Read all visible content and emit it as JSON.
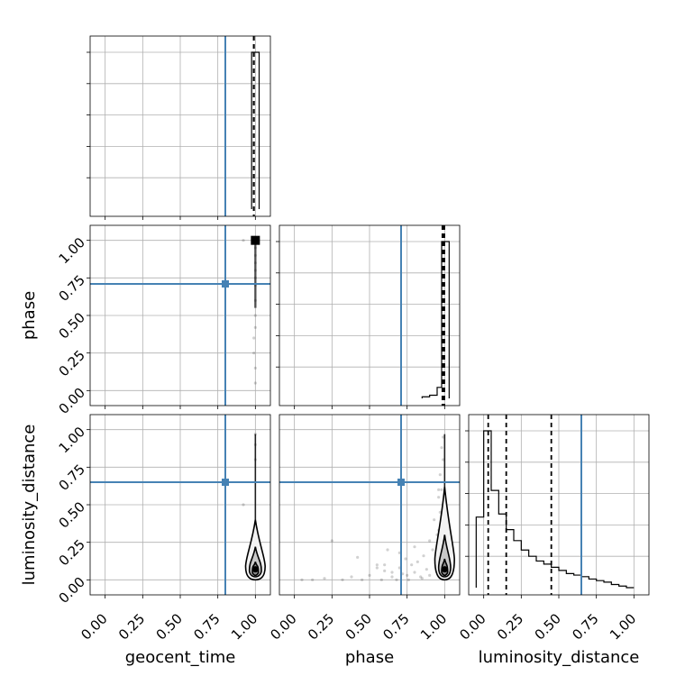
{
  "chart_data": {
    "type": "corner",
    "parameters": [
      "geocent_time",
      "phase",
      "luminosity_distance"
    ],
    "ticks": [
      "0.00",
      "0.25",
      "0.50",
      "0.75",
      "1.00"
    ],
    "range": [
      -0.1,
      1.1
    ],
    "grid": true,
    "truths": {
      "color": "#4682b4",
      "geocent_time": 0.8,
      "phase": 0.71,
      "luminosity_distance": 0.65
    },
    "quantiles_color": "#000000",
    "marginals": {
      "geocent_time": {
        "bin_edges": [
          0.975,
          1.0,
          1.025
        ],
        "counts": [
          1.0,
          1.0
        ],
        "quantiles": [
          0.99,
          0.99,
          0.99
        ]
      },
      "phase": {
        "bin_edges": [
          0.85,
          0.9,
          0.95,
          0.98,
          1.0,
          1.03
        ],
        "counts": [
          0.01,
          0.02,
          0.07,
          1.0,
          1.0
        ],
        "quantiles": [
          0.985,
          0.992,
          0.998
        ]
      },
      "luminosity_distance": {
        "bin_edges": [
          -0.05,
          0.0,
          0.05,
          0.1,
          0.15,
          0.2,
          0.25,
          0.3,
          0.35,
          0.4,
          0.45,
          0.5,
          0.55,
          0.6,
          0.65,
          0.7,
          0.75,
          0.8,
          0.85,
          0.9,
          0.95,
          1.0
        ],
        "counts": [
          0.45,
          1.0,
          0.62,
          0.47,
          0.37,
          0.3,
          0.24,
          0.2,
          0.17,
          0.15,
          0.13,
          0.11,
          0.09,
          0.08,
          0.07,
          0.055,
          0.045,
          0.035,
          0.02,
          0.01,
          0.0
        ],
        "quantiles": [
          0.03,
          0.15,
          0.45
        ]
      }
    },
    "joint": {
      "phase_vs_geocent_time": {
        "scatter_x": [
          1.0,
          1.0,
          1.0,
          1.0,
          1.0,
          1.0,
          1.0,
          1.0,
          1.0,
          1.0,
          0.99,
          0.99,
          0.92,
          1.0,
          1.0
        ],
        "scatter_y": [
          0.98,
          0.95,
          0.9,
          0.85,
          0.8,
          0.75,
          0.7,
          0.6,
          0.5,
          0.42,
          0.35,
          0.25,
          1.0,
          0.15,
          0.05
        ],
        "core": [
          1.0,
          1.0
        ]
      },
      "luminosity_distance_vs_geocent_time": {
        "contour_x_halfwidths": [
          0.065,
          0.04,
          0.02
        ],
        "contour_y": [
          [
            0.0,
            0.4
          ],
          [
            0.02,
            0.22
          ],
          [
            0.03,
            0.12
          ]
        ],
        "center": [
          1.0,
          0.07
        ],
        "scatter_x": [
          0.92,
          1.0,
          1.0,
          1.0
        ],
        "scatter_y": [
          0.5,
          0.97,
          0.9,
          0.8
        ]
      },
      "luminosity_distance_vs_phase": {
        "contour_x_halfwidths": [
          0.065,
          0.04,
          0.02
        ],
        "contour_y": [
          [
            0.0,
            0.62
          ],
          [
            0.02,
            0.3
          ],
          [
            0.03,
            0.14
          ]
        ],
        "center": [
          1.0,
          0.07
        ],
        "scatter_x": [
          0.05,
          0.12,
          0.2,
          0.25,
          0.32,
          0.38,
          0.42,
          0.45,
          0.5,
          0.55,
          0.58,
          0.6,
          0.62,
          0.65,
          0.68,
          0.7,
          0.72,
          0.74,
          0.76,
          0.78,
          0.8,
          0.82,
          0.84,
          0.86,
          0.88,
          0.9,
          0.92,
          0.94,
          0.96,
          0.97,
          0.98,
          0.99,
          0.95,
          0.9,
          0.85,
          0.8,
          0.75,
          0.7,
          0.65,
          0.6,
          0.55,
          0.93,
          0.96,
          0.97,
          0.99,
          0.98,
          0.96,
          0.94
        ],
        "scatter_y": [
          0.0,
          0.0,
          0.01,
          0.26,
          0.0,
          0.02,
          0.15,
          0.0,
          0.03,
          0.1,
          0.0,
          0.06,
          0.2,
          0.02,
          0.0,
          0.08,
          0.04,
          0.14,
          0.0,
          0.1,
          0.05,
          0.12,
          0.02,
          0.16,
          0.07,
          0.03,
          0.2,
          0.11,
          0.33,
          0.45,
          0.6,
          0.8,
          0.3,
          0.26,
          0.01,
          0.22,
          0.03,
          0.18,
          0.05,
          0.1,
          0.08,
          0.4,
          0.55,
          0.7,
          0.95,
          0.88,
          0.6,
          0.13
        ]
      }
    }
  }
}
